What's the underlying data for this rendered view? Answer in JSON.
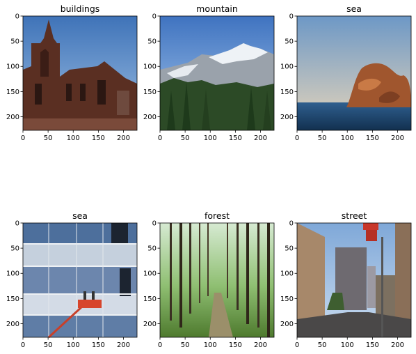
{
  "chart_data": [
    {
      "type": "image",
      "title": "buildings",
      "xlim": [
        0,
        227
      ],
      "ylim": [
        227,
        0
      ],
      "xticks": [
        0,
        50,
        100,
        150,
        200
      ],
      "yticks": [
        0,
        50,
        100,
        150,
        200
      ],
      "scene": "buildings",
      "xlabel": "",
      "ylabel": ""
    },
    {
      "type": "image",
      "title": "mountain",
      "xlim": [
        0,
        227
      ],
      "ylim": [
        227,
        0
      ],
      "xticks": [
        0,
        50,
        100,
        150,
        200
      ],
      "yticks": [
        0,
        50,
        100,
        150,
        200
      ],
      "scene": "mountain",
      "xlabel": "",
      "ylabel": ""
    },
    {
      "type": "image",
      "title": "sea",
      "xlim": [
        0,
        227
      ],
      "ylim": [
        227,
        0
      ],
      "xticks": [
        0,
        50,
        100,
        150,
        200
      ],
      "yticks": [
        0,
        50,
        100,
        150,
        200
      ],
      "scene": "sea-rock",
      "xlabel": "",
      "ylabel": ""
    },
    {
      "type": "image",
      "title": "sea",
      "xlim": [
        0,
        227
      ],
      "ylim": [
        227,
        0
      ],
      "xticks": [
        0,
        50,
        100,
        150,
        200
      ],
      "yticks": [
        0,
        50,
        100,
        150,
        200
      ],
      "scene": "glass-facade",
      "xlabel": "",
      "ylabel": ""
    },
    {
      "type": "image",
      "title": "forest",
      "xlim": [
        0,
        227
      ],
      "ylim": [
        227,
        0
      ],
      "xticks": [
        0,
        50,
        100,
        150,
        200
      ],
      "yticks": [
        0,
        50,
        100,
        150,
        200
      ],
      "scene": "forest",
      "xlabel": "",
      "ylabel": ""
    },
    {
      "type": "image",
      "title": "street",
      "xlim": [
        0,
        227
      ],
      "ylim": [
        227,
        0
      ],
      "xticks": [
        0,
        50,
        100,
        150,
        200
      ],
      "yticks": [
        0,
        50,
        100,
        150,
        200
      ],
      "scene": "street",
      "xlabel": "",
      "ylabel": ""
    }
  ]
}
